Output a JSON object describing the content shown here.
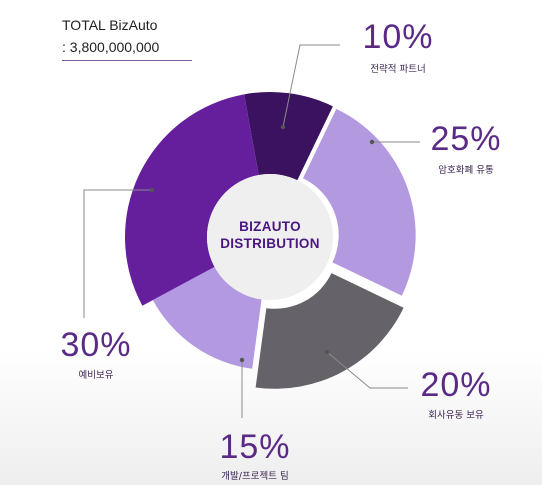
{
  "header": {
    "total_label": "TOTAL BizAuto",
    "total_value": ": 3,800,000,000"
  },
  "center": {
    "line1": "BIZAUTO",
    "line2": "DISTRIBUTION"
  },
  "chart_data": {
    "type": "pie",
    "title": "",
    "slices": [
      {
        "label": "전략적 파트너",
        "value": 10,
        "value_label": "10%",
        "color": "#3a1260"
      },
      {
        "label": "암호화폐 유통",
        "value": 25,
        "value_label": "25%",
        "color": "#b39ae0"
      },
      {
        "label": "회사유동 보유",
        "value": 20,
        "value_label": "20%",
        "color": "#666269"
      },
      {
        "label": "개발/프로젝트 팀",
        "value": 15,
        "value_label": "15%",
        "color": "#b398e2"
      },
      {
        "label": "예비보유",
        "value": 30,
        "value_label": "30%",
        "color": "#651f9c"
      }
    ]
  }
}
